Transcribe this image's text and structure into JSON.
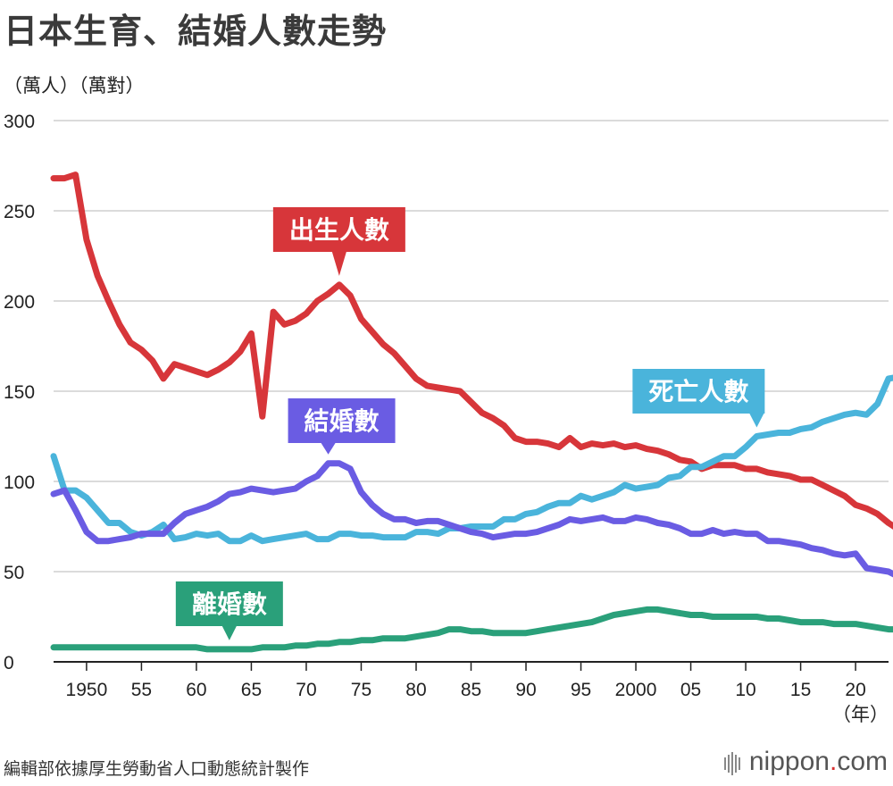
{
  "title": "日本生育、結婚人數走勢",
  "unit_label": "（萬人）（萬對）",
  "source": "編輯部依據厚生勞動省人口動態統計製作",
  "logo": {
    "name": "nippon",
    "dot": ".",
    "tld": "com"
  },
  "chart_data": {
    "type": "line",
    "title": "日本生育、結婚人數走勢",
    "ylabel": "（萬人）（萬對）",
    "xlabel": "（年）",
    "xlim": [
      1947,
      2023
    ],
    "ylim": [
      0,
      300
    ],
    "y_ticks": [
      0,
      50,
      100,
      150,
      200,
      250,
      300
    ],
    "x_ticks": [
      {
        "year": 1950,
        "label": "1950"
      },
      {
        "year": 1955,
        "label": "55"
      },
      {
        "year": 1960,
        "label": "60"
      },
      {
        "year": 1965,
        "label": "65"
      },
      {
        "year": 1970,
        "label": "70"
      },
      {
        "year": 1975,
        "label": "75"
      },
      {
        "year": 1980,
        "label": "80"
      },
      {
        "year": 1985,
        "label": "85"
      },
      {
        "year": 1990,
        "label": "90"
      },
      {
        "year": 1995,
        "label": "95"
      },
      {
        "year": 2000,
        "label": "2000"
      },
      {
        "year": 2005,
        "label": "05"
      },
      {
        "year": 2010,
        "label": "10"
      },
      {
        "year": 2015,
        "label": "15"
      },
      {
        "year": 2020,
        "label": "20"
      }
    ],
    "grid": true,
    "x_start": 1947,
    "series": [
      {
        "name": "出生人數",
        "color": "#d7363a",
        "label_anchor_year": 1973,
        "values": [
          268,
          268,
          270,
          234,
          214,
          200,
          187,
          177,
          173,
          167,
          157,
          165,
          163,
          161,
          159,
          162,
          166,
          172,
          182,
          136,
          194,
          187,
          189,
          193,
          200,
          204,
          209,
          203,
          190,
          183,
          176,
          171,
          164,
          157,
          153,
          152,
          151,
          150,
          144,
          138,
          135,
          131,
          124,
          122,
          122,
          121,
          119,
          124,
          119,
          121,
          120,
          121,
          119,
          120,
          118,
          117,
          115,
          112,
          111,
          107,
          109,
          109,
          109,
          107,
          107,
          105,
          104,
          103,
          101,
          101,
          98,
          95,
          92,
          87,
          85,
          82,
          77,
          73
        ]
      },
      {
        "name": "死亡人數",
        "color": "#4ab4db",
        "label_anchor_year": 2011,
        "values": [
          114,
          95,
          95,
          91,
          84,
          77,
          77,
          72,
          70,
          72,
          76,
          68,
          69,
          71,
          70,
          71,
          67,
          67,
          70,
          67,
          68,
          69,
          70,
          71,
          68,
          68,
          71,
          71,
          70,
          70,
          69,
          69,
          69,
          72,
          72,
          71,
          74,
          74,
          75,
          75,
          75,
          79,
          79,
          82,
          83,
          86,
          88,
          88,
          92,
          90,
          92,
          94,
          98,
          96,
          97,
          98,
          102,
          103,
          108,
          108,
          111,
          114,
          114,
          119,
          125,
          126,
          127,
          127,
          129,
          130,
          133,
          135,
          137,
          138,
          137,
          143,
          157,
          158
        ]
      },
      {
        "name": "結婚數",
        "color": "#6a5ce3",
        "label_anchor_year": 1972,
        "values": [
          93,
          95,
          84,
          72,
          67,
          67,
          68,
          69,
          71,
          71,
          71,
          77,
          82,
          84,
          86,
          89,
          93,
          94,
          96,
          95,
          94,
          95,
          96,
          100,
          103,
          110,
          110,
          107,
          94,
          87,
          82,
          79,
          79,
          77,
          78,
          78,
          76,
          74,
          72,
          71,
          69,
          70,
          71,
          71,
          72,
          74,
          76,
          79,
          78,
          79,
          80,
          78,
          78,
          80,
          79,
          77,
          76,
          74,
          71,
          71,
          73,
          71,
          72,
          71,
          71,
          67,
          67,
          66,
          65,
          63,
          62,
          60,
          59,
          60,
          52,
          51,
          50,
          47
        ]
      },
      {
        "name": "離婚數",
        "color": "#2aa07a",
        "label_anchor_year": 1963,
        "values": [
          8,
          8,
          8,
          8,
          8,
          8,
          8,
          8,
          8,
          8,
          8,
          8,
          8,
          8,
          7,
          7,
          7,
          7,
          7,
          8,
          8,
          8,
          9,
          9,
          10,
          10,
          11,
          11,
          12,
          12,
          13,
          13,
          13,
          14,
          15,
          16,
          18,
          18,
          17,
          17,
          16,
          16,
          16,
          16,
          17,
          18,
          19,
          20,
          21,
          22,
          24,
          26,
          27,
          28,
          29,
          29,
          28,
          27,
          26,
          26,
          25,
          25,
          25,
          25,
          25,
          24,
          24,
          23,
          22,
          22,
          22,
          21,
          21,
          21,
          20,
          19,
          18,
          18
        ]
      }
    ]
  }
}
